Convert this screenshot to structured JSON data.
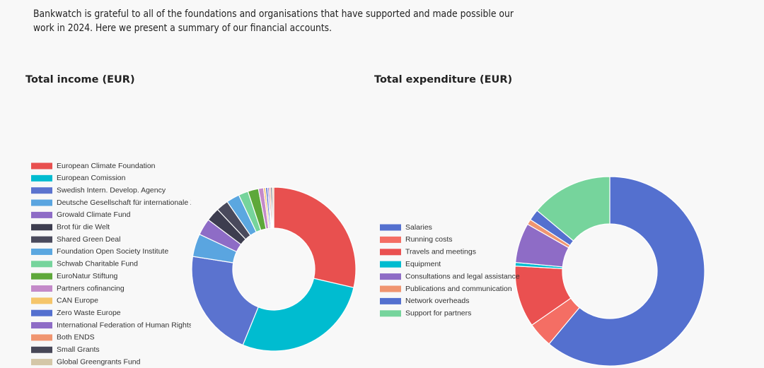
{
  "page": {
    "intro": [
      "Bankwatch is grateful to all of the foundations and organisations that have supported and made possible our",
      "work in 2024. Here we present a summary of our financial accounts."
    ]
  },
  "chart_data": [
    {
      "type": "donut",
      "title": "Total income (EUR)",
      "categories": [
        "European Climate Foundation",
        "European Comission",
        "Swedish Intern. Develop. Agency",
        "Deutsche Gesellschaft für internationale Zusa",
        "Growald Climate Fund",
        "Brot für die Welt",
        "Shared Green Deal",
        "Foundation Open Society Institute",
        "Schwab Charitable Fund",
        "EuroNatur Stiftung",
        "Partners cofinancing",
        "CAN Europe",
        "Zero Waste Europe",
        "International Federation of Human Rights",
        "Both ENDS",
        "Small Grants",
        "Global Greengrants Fund"
      ],
      "values": [
        28.6,
        27.5,
        21.3,
        4.5,
        3.3,
        2.7,
        2.4,
        2.6,
        1.9,
        2.1,
        1.0,
        0.4,
        0.4,
        0.3,
        0.3,
        0.3,
        0.3
      ],
      "colors": [
        "#e8504f",
        "#00bcd0",
        "#5b73cf",
        "#5aa5e0",
        "#8e6cc6",
        "#3d3d4f",
        "#4a4a5c",
        "#5ba7e0",
        "#76d49c",
        "#5ea83a",
        "#c48ac9",
        "#f5c56a",
        "#5470cf",
        "#8e6cc6",
        "#f09570",
        "#474757",
        "#d4c7a8"
      ]
    },
    {
      "type": "donut",
      "title": "Total expenditure (EUR)",
      "categories": [
        "Salaries",
        "Running costs",
        "Travels and meetings",
        "Equipment",
        "Consultations and legal assistance",
        "Publications and communication",
        "Network overheads",
        "Support for partners"
      ],
      "values": [
        61.0,
        4.3,
        10.5,
        0.6,
        6.8,
        0.9,
        1.9,
        13.9
      ],
      "colors": [
        "#5470cf",
        "#f46e64",
        "#ea5050",
        "#00bcd0",
        "#8e6cc6",
        "#f09570",
        "#5470cf",
        "#76d49c"
      ]
    }
  ]
}
